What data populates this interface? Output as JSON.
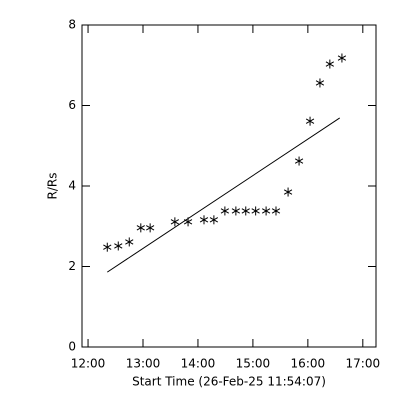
{
  "chart_data": {
    "type": "scatter",
    "x_label": "Start Time (26-Feb-25 11:54:07)",
    "y_label": "R/Rs",
    "xlim": [
      11.89,
      17.24
    ],
    "ylim": [
      0,
      8
    ],
    "xticks": [
      {
        "value": 12,
        "label": "12:00"
      },
      {
        "value": 13,
        "label": "13:00"
      },
      {
        "value": 14,
        "label": "14:00"
      },
      {
        "value": 15,
        "label": "15:00"
      },
      {
        "value": 16,
        "label": "16:00"
      },
      {
        "value": 17,
        "label": "17:00"
      }
    ],
    "yticks": [
      0,
      2,
      4,
      6,
      8
    ],
    "series": [
      {
        "kind": "points",
        "color": "#000000",
        "x": [
          12.35,
          12.55,
          12.75,
          12.96,
          13.13,
          13.58,
          13.82,
          14.11,
          14.29,
          14.49,
          14.69,
          14.87,
          15.05,
          15.24,
          15.42,
          15.64,
          15.84,
          16.04,
          16.22,
          16.4,
          16.62
        ],
        "values": [
          2.48,
          2.51,
          2.61,
          2.96,
          2.96,
          3.11,
          3.11,
          3.16,
          3.16,
          3.38,
          3.38,
          3.38,
          3.38,
          3.38,
          3.38,
          3.85,
          4.62,
          5.61,
          6.56,
          7.03,
          7.18
        ]
      },
      {
        "kind": "line",
        "color": "#000000",
        "x": [
          12.35,
          16.58
        ],
        "values": [
          1.86,
          5.69
        ]
      }
    ]
  }
}
